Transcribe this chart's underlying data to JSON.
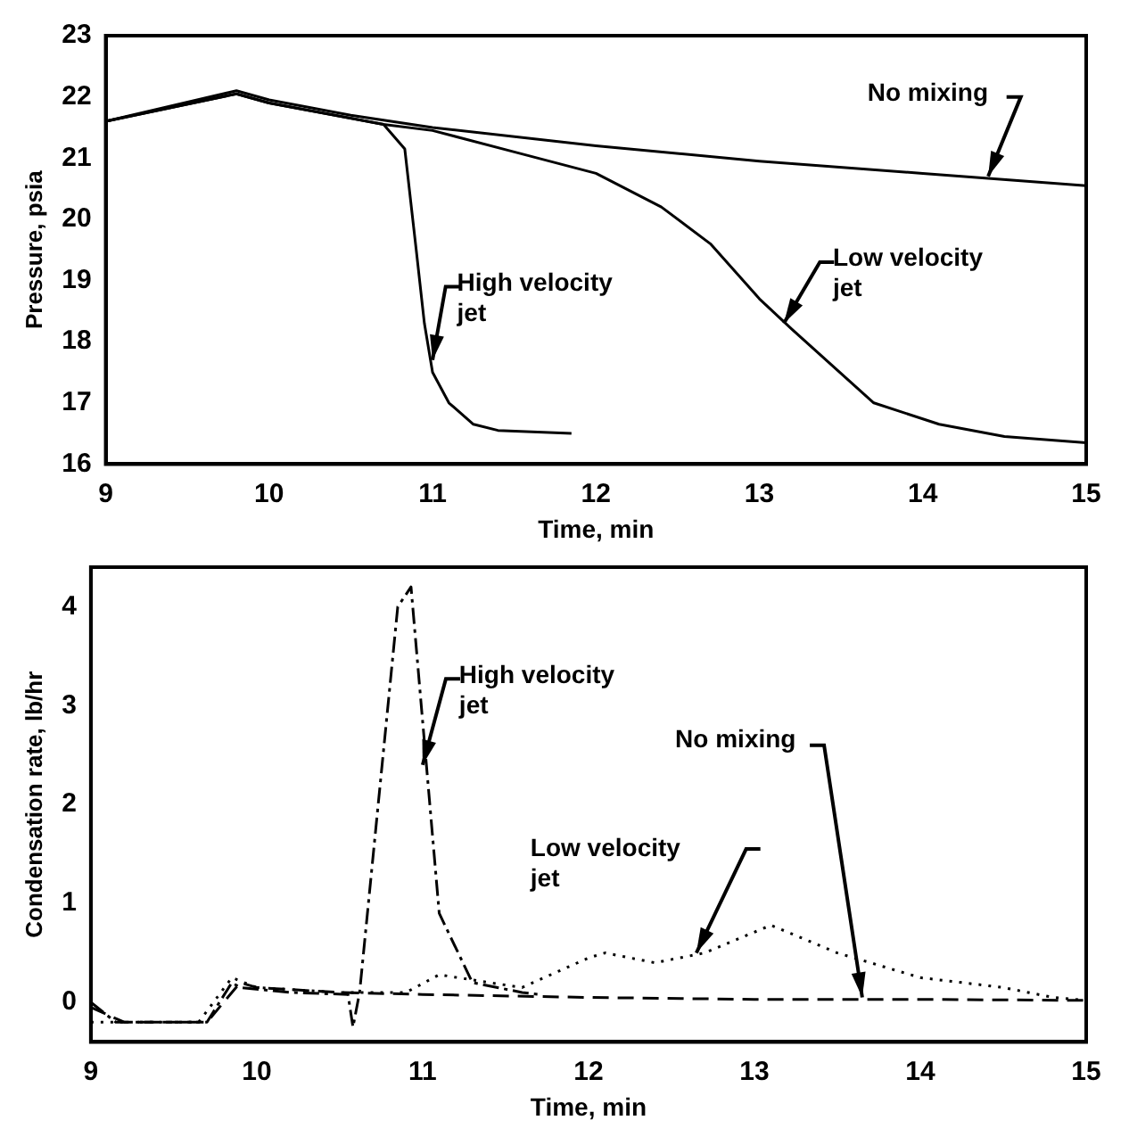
{
  "chart_data": [
    {
      "type": "line",
      "xlabel": "Time, min",
      "ylabel": "Pressure, psia",
      "xlim": [
        9,
        15
      ],
      "xticks": [
        9,
        10,
        11,
        12,
        13,
        14,
        15
      ],
      "ylim": [
        16,
        23
      ],
      "yticks": [
        16,
        17,
        18,
        19,
        20,
        21,
        22,
        23
      ],
      "grid": false,
      "legend": false,
      "marker": "none",
      "series": [
        {
          "name": "No mixing",
          "color": "#000000",
          "line_style": "solid",
          "x": [
            9,
            9.8,
            10,
            10.5,
            11,
            12,
            13,
            14,
            15
          ],
          "values": [
            21.6,
            22.1,
            21.95,
            21.7,
            21.5,
            21.2,
            20.95,
            20.75,
            20.55
          ]
        },
        {
          "name": "Low velocity jet",
          "color": "#000000",
          "line_style": "solid",
          "x": [
            9,
            9.8,
            10,
            10.5,
            10.7,
            11,
            11.5,
            12,
            12.4,
            12.7,
            13,
            13.2,
            13.7,
            14.1,
            14.5,
            15
          ],
          "values": [
            21.6,
            22.05,
            21.9,
            21.65,
            21.55,
            21.45,
            21.1,
            20.75,
            20.2,
            19.6,
            18.7,
            18.2,
            17.0,
            16.65,
            16.45,
            16.35
          ]
        },
        {
          "name": "High velocity jet",
          "color": "#000000",
          "line_style": "solid",
          "x": [
            9,
            9.8,
            10,
            10.7,
            10.83,
            10.9,
            10.95,
            11,
            11.1,
            11.25,
            11.4,
            11.85
          ],
          "values": [
            21.6,
            22.05,
            21.9,
            21.55,
            21.15,
            19.5,
            18.3,
            17.5,
            17.0,
            16.65,
            16.55,
            16.5
          ]
        }
      ]
    },
    {
      "type": "line",
      "xlabel": "Time, min",
      "ylabel": "Condensation rate, lb/hr",
      "xlim": [
        9,
        15
      ],
      "xticks": [
        9,
        10,
        11,
        12,
        13,
        14,
        15
      ],
      "ylim": [
        -0.4,
        4.4
      ],
      "yticks": [
        0,
        1,
        2,
        3,
        4
      ],
      "grid": false,
      "legend": false,
      "marker": "none",
      "series": [
        {
          "name": "High velocity jet",
          "color": "#000000",
          "line_style": "dashdot",
          "x": [
            9,
            9.15,
            9.7,
            9.85,
            9.9,
            10.2,
            10.55,
            10.58,
            10.62,
            10.85,
            10.93,
            11.1,
            11.3,
            11.6,
            11.7
          ],
          "values": [
            0,
            -0.2,
            -0.2,
            0.2,
            0.15,
            0.1,
            0.08,
            -0.25,
            0.1,
            4.0,
            4.2,
            0.9,
            0.2,
            0.1,
            0.08
          ]
        },
        {
          "name": "Low velocity jet",
          "color": "#000000",
          "line_style": "dotted",
          "x": [
            9,
            9.65,
            9.85,
            10,
            10.5,
            10.9,
            11.1,
            11.4,
            11.6,
            12,
            12.1,
            12.4,
            12.7,
            13.1,
            13.5,
            14,
            14.5,
            14.8,
            15
          ],
          "values": [
            -0.2,
            -0.2,
            0.25,
            0.15,
            0.1,
            0.1,
            0.28,
            0.2,
            0.15,
            0.45,
            0.5,
            0.4,
            0.5,
            0.78,
            0.5,
            0.25,
            0.15,
            0.05,
            0.02
          ]
        },
        {
          "name": "No mixing",
          "color": "#000000",
          "line_style": "dashed",
          "x": [
            9,
            9.2,
            9.7,
            9.9,
            10,
            10.5,
            11,
            12,
            13,
            14,
            15
          ],
          "values": [
            -0.05,
            -0.2,
            -0.2,
            0.2,
            0.15,
            0.1,
            0.08,
            0.05,
            0.03,
            0.03,
            0.02
          ]
        }
      ]
    }
  ]
}
